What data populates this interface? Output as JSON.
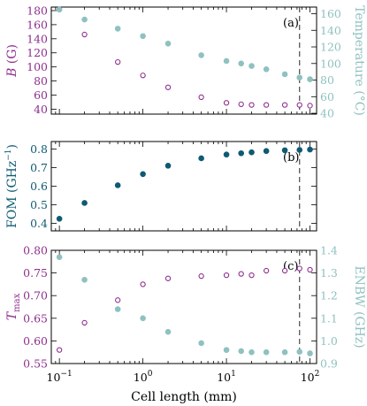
{
  "colors": {
    "purple": "#8E2F8E",
    "teal_dark": "#0E5A73",
    "teal_light": "#8FC1C0",
    "axis": "#000000",
    "marker_line": "#4A4A4A"
  },
  "chart_data": [
    {
      "type": "scatter",
      "panel": "(a)",
      "xlabel": "",
      "xscale": "log",
      "xlim": [
        0.08,
        120
      ],
      "ylabel_left": "B (G)",
      "ylabel_right": "Temperature (°C)",
      "ylim_left": [
        33,
        185
      ],
      "ylim_right": [
        39,
        168
      ],
      "yticks_left": [
        40,
        60,
        80,
        100,
        120,
        140,
        160,
        180
      ],
      "yticks_right": [
        40,
        60,
        80,
        100,
        120,
        140,
        160
      ],
      "vline_x": 75,
      "series": [
        {
          "name": "B",
          "axis": "left",
          "marker": "open-circle",
          "color": "#8E2F8E",
          "x": [
            0.1,
            0.2,
            0.5,
            1,
            2,
            5,
            10,
            15,
            20,
            30,
            50,
            75,
            100
          ],
          "y": [
            182,
            146,
            107,
            88,
            71,
            57,
            49,
            47,
            46,
            46,
            46,
            46,
            45
          ]
        },
        {
          "name": "Temperature",
          "axis": "right",
          "marker": "filled-circle",
          "color": "#8FC1C0",
          "x": [
            0.1,
            0.2,
            0.5,
            1,
            2,
            5,
            10,
            15,
            20,
            30,
            50,
            75,
            100
          ],
          "y": [
            165,
            153,
            142,
            133,
            124,
            110,
            103,
            100,
            97,
            93,
            87,
            83,
            81
          ]
        }
      ]
    },
    {
      "type": "scatter",
      "panel": "(b)",
      "xlabel": "",
      "xscale": "log",
      "xlim": [
        0.08,
        120
      ],
      "ylabel_left": "FOM (GHz−1)",
      "ylim_left": [
        0.36,
        0.84
      ],
      "yticks_left": [
        0.4,
        0.5,
        0.6,
        0.7,
        0.8
      ],
      "vline_x": 75,
      "series": [
        {
          "name": "FOM",
          "axis": "left",
          "marker": "filled-circle",
          "color": "#0E5A73",
          "x": [
            0.1,
            0.2,
            0.5,
            1,
            2,
            5,
            10,
            15,
            20,
            30,
            50,
            75,
            100
          ],
          "y": [
            0.425,
            0.51,
            0.605,
            0.665,
            0.71,
            0.75,
            0.77,
            0.777,
            0.782,
            0.789,
            0.793,
            0.795,
            0.797
          ]
        }
      ]
    },
    {
      "type": "scatter",
      "panel": "(c)",
      "xlabel": "Cell length (mm)",
      "xscale": "log",
      "xlim": [
        0.08,
        120
      ],
      "xticks": [
        0.1,
        1,
        10,
        100
      ],
      "xtick_labels": [
        "10",
        "10",
        "10",
        "10"
      ],
      "xtick_exponents": [
        "−1",
        "0",
        "1",
        "2"
      ],
      "ylabel_left": "Tmax",
      "ylabel_right": "ENBW (GHz)",
      "ylim_left": [
        0.55,
        0.8
      ],
      "ylim_right": [
        0.9,
        1.4
      ],
      "yticks_left": [
        0.55,
        0.6,
        0.65,
        0.7,
        0.75,
        0.8
      ],
      "yticks_right": [
        0.9,
        1.0,
        1.1,
        1.2,
        1.3,
        1.4
      ],
      "vline_x": 75,
      "series": [
        {
          "name": "Tmax",
          "axis": "left",
          "marker": "open-circle",
          "color": "#8E2F8E",
          "x": [
            0.1,
            0.2,
            0.5,
            1,
            2,
            5,
            10,
            15,
            20,
            30,
            50,
            75,
            100
          ],
          "y": [
            0.58,
            0.64,
            0.69,
            0.725,
            0.738,
            0.743,
            0.745,
            0.748,
            0.745,
            0.755,
            0.755,
            0.76,
            0.757
          ]
        },
        {
          "name": "ENBW",
          "axis": "right",
          "marker": "filled-circle",
          "color": "#8FC1C0",
          "x": [
            0.1,
            0.2,
            0.5,
            1,
            2,
            5,
            10,
            15,
            20,
            30,
            50,
            75,
            100
          ],
          "y": [
            1.37,
            1.27,
            1.14,
            1.1,
            1.04,
            0.99,
            0.96,
            0.955,
            0.95,
            0.95,
            0.95,
            0.952,
            0.945
          ]
        }
      ]
    }
  ]
}
